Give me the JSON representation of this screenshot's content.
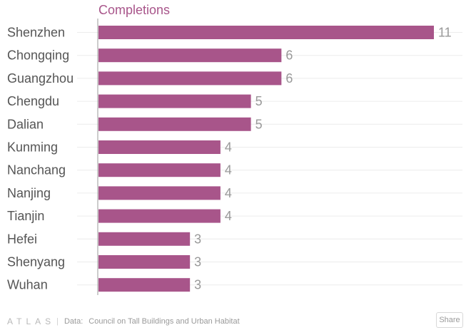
{
  "chart_data": {
    "type": "bar",
    "orientation": "horizontal",
    "title": "Completions",
    "categories": [
      "Shenzhen",
      "Chongqing",
      "Guangzhou",
      "Chengdu",
      "Dalian",
      "Kunming",
      "Nanchang",
      "Nanjing",
      "Tianjin",
      "Hefei",
      "Shenyang",
      "Wuhan"
    ],
    "values": [
      11,
      6,
      6,
      5,
      5,
      4,
      4,
      4,
      4,
      3,
      3,
      3
    ],
    "xlim": [
      0,
      11
    ],
    "grid": true,
    "xlabel": "",
    "ylabel": ""
  },
  "colors": {
    "bar": "#a8558a",
    "title": "#a8558a",
    "category_label": "#555555",
    "value_label": "#999999",
    "grid": "#ececec",
    "axis": "#999999"
  },
  "footer": {
    "brand": "ATLAS",
    "separator": "|",
    "data_label": "Data:",
    "source": "Council on Tall Buildings and Urban Habitat",
    "share_label": "Share"
  }
}
